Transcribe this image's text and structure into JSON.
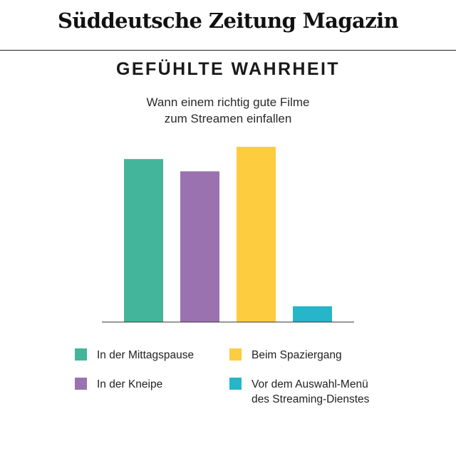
{
  "header": {
    "publication": "Süddeutsche Zeitung Magazin"
  },
  "chart_data": {
    "type": "bar",
    "title": "GEFÜHLTE WAHRHEIT",
    "subtitle_lines": [
      "Wann einem richtig gute Filme",
      "zum Streamen einfallen"
    ],
    "categories": [
      "In der Mittagspause",
      "In der Kneipe",
      "Beim Spaziergang",
      "Vor dem Auswahl-Menü des Streaming-Dienstes"
    ],
    "values": [
      93,
      86,
      100,
      9
    ],
    "ylim": [
      0,
      100
    ],
    "grid": false,
    "legend_placement": "bottom",
    "colors": [
      "#43b59a",
      "#9b72b0",
      "#fdcc3f",
      "#27b5c9"
    ]
  },
  "legend": {
    "items": [
      {
        "lines": [
          "In der Mittagspause"
        ],
        "color": "#43b59a"
      },
      {
        "lines": [
          "Beim Spaziergang"
        ],
        "color": "#fdcc3f"
      },
      {
        "lines": [
          "In der Kneipe"
        ],
        "color": "#9b72b0"
      },
      {
        "lines": [
          "Vor dem Auswahl-Menü",
          "des Streaming-Dienstes"
        ],
        "color": "#27b5c9"
      }
    ]
  }
}
